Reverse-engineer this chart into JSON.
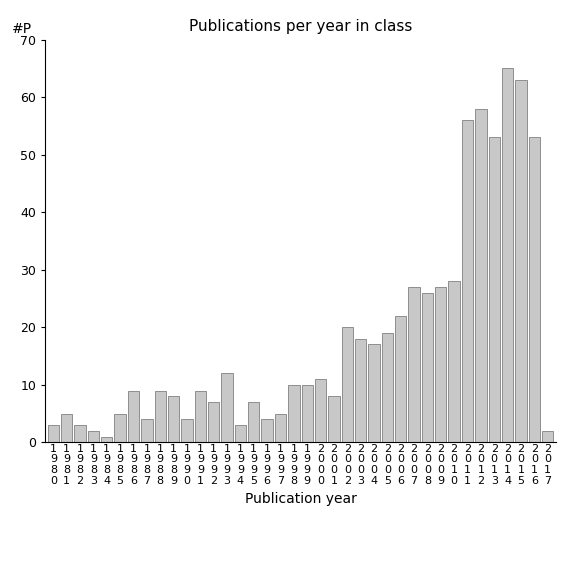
{
  "title": "Publications per year in class",
  "xlabel": "Publication year",
  "ylabel": "#P",
  "bar_color": "#c8c8c8",
  "bar_edgecolor": "#808080",
  "ylim": [
    0,
    70
  ],
  "yticks": [
    0,
    10,
    20,
    30,
    40,
    50,
    60,
    70
  ],
  "years": [
    1980,
    1981,
    1982,
    1983,
    1984,
    1985,
    1986,
    1987,
    1988,
    1989,
    1990,
    1991,
    1992,
    1993,
    1994,
    1995,
    1996,
    1997,
    1998,
    1999,
    2000,
    2001,
    2002,
    2003,
    2004,
    2005,
    2006,
    2007,
    2008,
    2009,
    2010,
    2011,
    2012,
    2013,
    2014,
    2015,
    2016,
    2017
  ],
  "values": [
    3,
    5,
    3,
    2,
    1,
    5,
    9,
    4,
    9,
    8,
    4,
    9,
    7,
    12,
    3,
    7,
    4,
    5,
    10,
    10,
    11,
    8,
    20,
    18,
    17,
    19,
    22,
    27,
    26,
    27,
    28,
    56,
    58,
    53,
    65,
    63,
    53,
    2
  ],
  "title_fontsize": 11,
  "axis_fontsize": 9,
  "label_fontsize": 10,
  "tick_fontsize": 8
}
